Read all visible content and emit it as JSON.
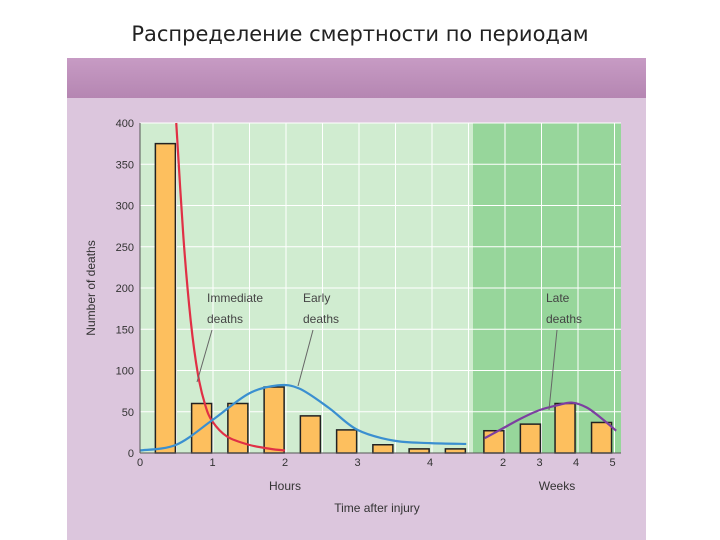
{
  "slide": {
    "title": "Распределение смертности по периодам"
  },
  "chart_data": {
    "type": "bar",
    "ylabel": "Number of deaths",
    "xlabel": "Time after injury",
    "ylim": [
      0,
      400
    ],
    "y_ticks": [
      "400",
      "350",
      "300",
      "250",
      "200",
      "150",
      "100",
      "50",
      "0"
    ],
    "hours_axis": {
      "label": "Hours",
      "ticks": [
        "0",
        "1",
        "2",
        "3",
        "4"
      ]
    },
    "weeks_axis": {
      "label": "Weeks",
      "ticks": [
        "2",
        "3",
        "4",
        "5"
      ]
    },
    "grid": true,
    "bars": {
      "hours": [
        {
          "x": 0.35,
          "value": 375
        },
        {
          "x": 0.85,
          "value": 60
        },
        {
          "x": 1.35,
          "value": 60
        },
        {
          "x": 1.85,
          "value": 80
        },
        {
          "x": 2.35,
          "value": 45
        },
        {
          "x": 2.85,
          "value": 28
        },
        {
          "x": 3.35,
          "value": 10
        },
        {
          "x": 3.85,
          "value": 5
        },
        {
          "x": 4.35,
          "value": 5
        }
      ],
      "weeks": [
        {
          "x": 1.75,
          "value": 27
        },
        {
          "x": 2.75,
          "value": 35
        },
        {
          "x": 3.7,
          "value": 60
        },
        {
          "x": 4.7,
          "value": 37
        }
      ]
    },
    "series": [
      {
        "name": "Immediate deaths",
        "axis": "hours",
        "color": "#e03045",
        "x": [
          0.5,
          0.6,
          0.7,
          0.8,
          0.9,
          1.0,
          1.2,
          1.5,
          1.8,
          2.0
        ],
        "y": [
          400,
          260,
          160,
          95,
          58,
          38,
          20,
          10,
          5,
          3
        ]
      },
      {
        "name": "Early deaths",
        "axis": "hours",
        "color": "#3a8fd0",
        "x": [
          0,
          0.5,
          1.0,
          1.5,
          1.9,
          2.2,
          2.6,
          3.0,
          3.5,
          4.0,
          4.5
        ],
        "y": [
          3,
          10,
          40,
          72,
          82,
          78,
          55,
          28,
          15,
          12,
          11
        ]
      },
      {
        "name": "Late deaths",
        "axis": "weeks",
        "color": "#7c3fa0",
        "x": [
          1.5,
          2.0,
          2.5,
          3.0,
          3.5,
          3.9,
          4.3,
          4.7,
          5.1
        ],
        "y": [
          18,
          30,
          42,
          52,
          58,
          61,
          55,
          42,
          27
        ]
      }
    ],
    "annotations": {
      "immediate": [
        "Immediate",
        "deaths"
      ],
      "early": [
        "Early",
        "deaths"
      ],
      "late": [
        "Late",
        "deaths"
      ]
    },
    "colors": {
      "bar_fill": "#fdbf5e",
      "bar_stroke": "#222222",
      "hours_bg": "#d0ecd0",
      "weeks_bg": "#97d69b",
      "panel": "#dcc6dd"
    }
  }
}
